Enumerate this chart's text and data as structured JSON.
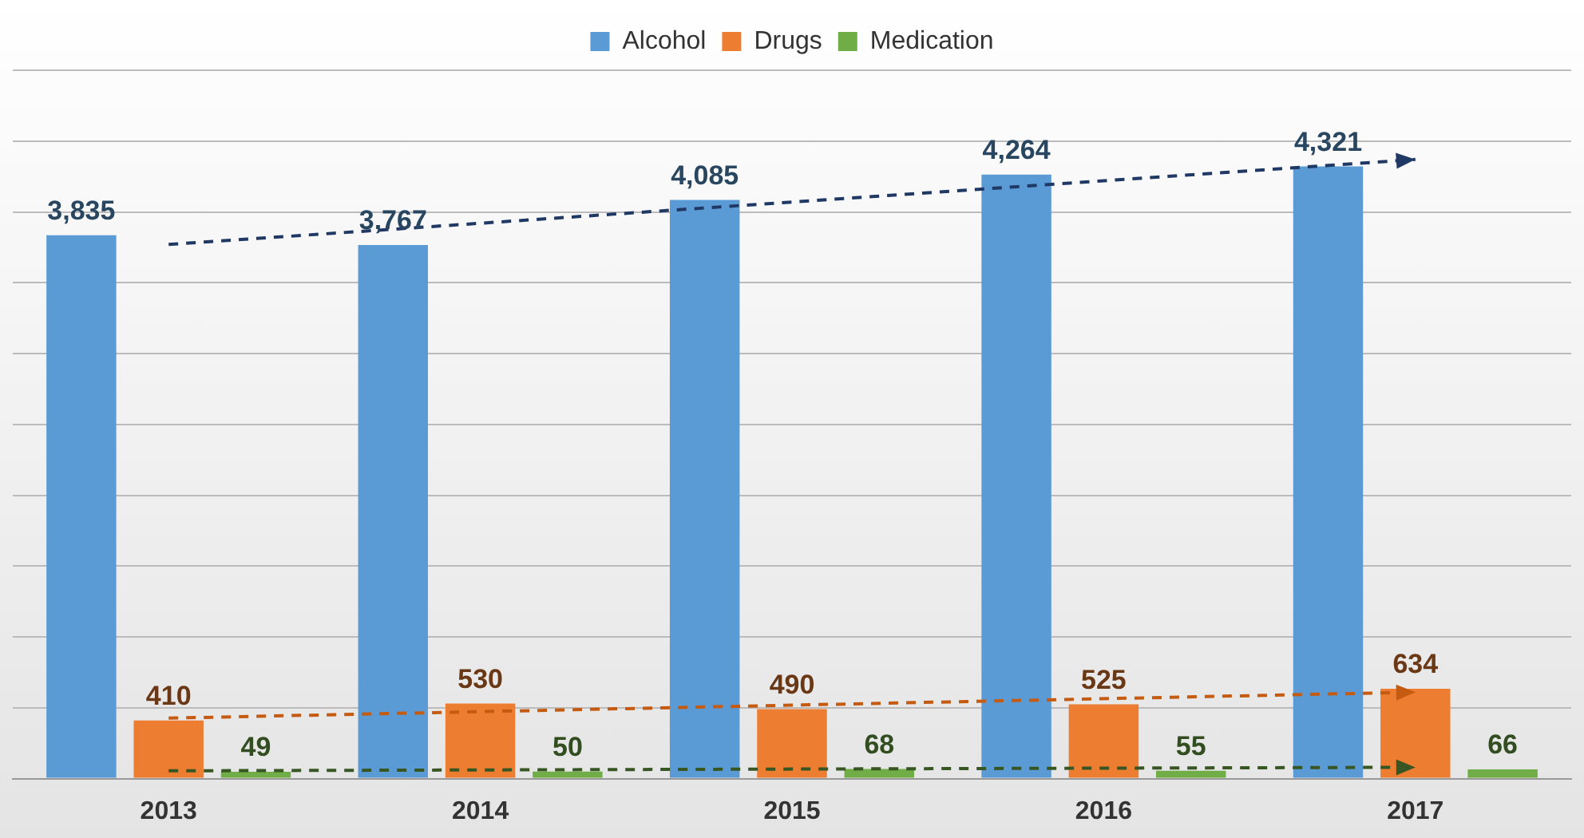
{
  "chart_data": {
    "type": "bar",
    "categories": [
      "2013",
      "2014",
      "2015",
      "2016",
      "2017"
    ],
    "series": [
      {
        "type": "line",
        "color": "#1f3864",
        "line_style": "dashed",
        "values": [
          3770,
          null,
          null,
          null,
          4370
        ]
      },
      {
        "type": "line",
        "color": "#c55a11",
        "line_style": "dashed",
        "values": [
          427,
          null,
          null,
          null,
          610
        ]
      },
      {
        "type": "line",
        "color": "#375623",
        "line_style": "dashed",
        "values": [
          55,
          null,
          null,
          null,
          80
        ]
      },
      {
        "name": "Alcohol",
        "color": "#5b9bd5",
        "values": [
          3835,
          3767,
          4085,
          4264,
          4321
        ],
        "value_labels": [
          "3,835",
          "3,767",
          "4,085",
          "4,264",
          "4,321"
        ]
      },
      {
        "name": "Drugs",
        "color": "#ed7d31",
        "values": [
          410,
          530,
          490,
          525,
          634
        ],
        "value_labels": [
          "410",
          "530",
          "490",
          "525",
          "634"
        ]
      },
      {
        "name": "Medication",
        "color": "#70ad47",
        "values": [
          49,
          50,
          68,
          55,
          66
        ],
        "value_labels": [
          "49",
          "50",
          "68",
          "55",
          "66"
        ]
      }
    ],
    "ylim": [
      0,
      5000
    ],
    "tick_labels": "x",
    "grid": "y",
    "legend": "top"
  }
}
